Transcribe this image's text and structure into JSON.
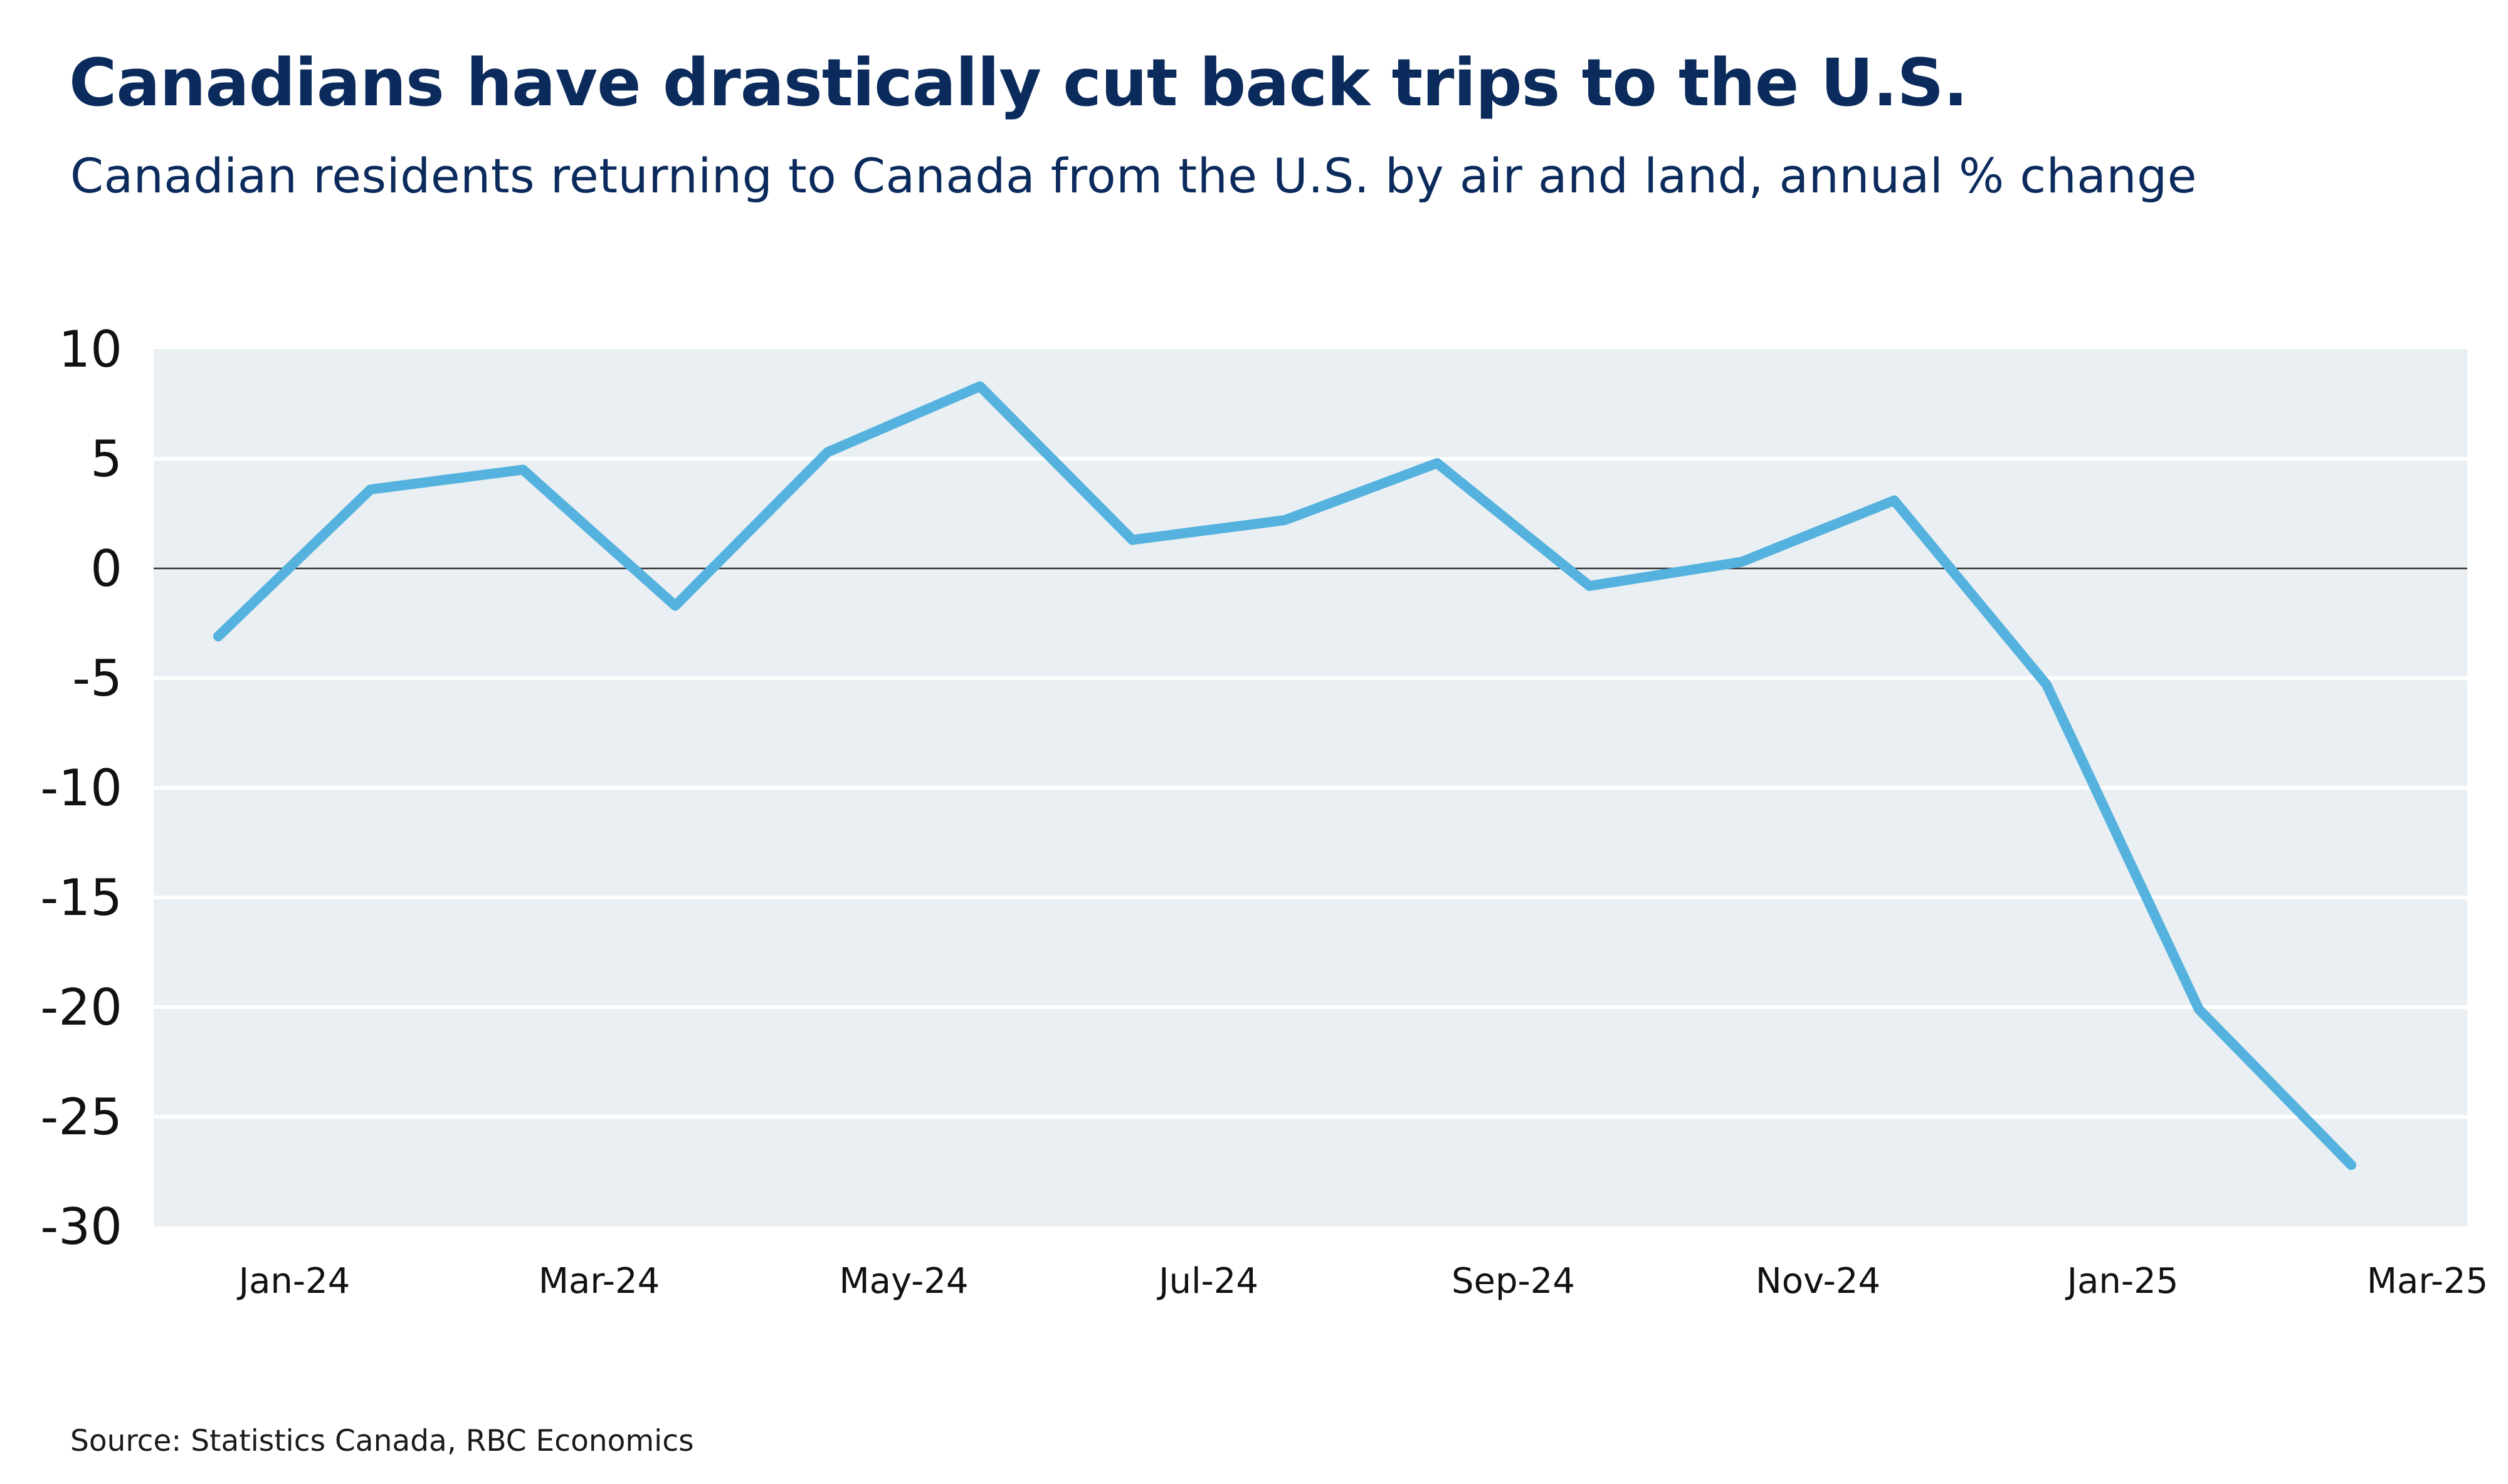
{
  "title": "Canadians have drastically cut back trips to the U.S.",
  "subtitle": "Canadian residents returning to Canada from the U.S. by air and land, annual % change",
  "source": "Source: Statistics Canada, RBC Economics",
  "colors": {
    "line": "#55b2de",
    "plot_background": "#e9eff2",
    "gridline": "#ffffff",
    "zero_line": "#333333",
    "title": "#0b2b5c",
    "axis_text": "#111111"
  },
  "chart_data": {
    "type": "line",
    "title": "Canadians have drastically cut back trips to the U.S.",
    "subtitle": "Canadian residents returning to Canada from the U.S. by air and land, annual % change",
    "xlabel": "",
    "ylabel": "",
    "ylim": [
      -30,
      10
    ],
    "yticks": [
      10,
      5,
      0,
      -5,
      -10,
      -15,
      -20,
      -25,
      -30
    ],
    "ytick_labels": [
      "10",
      "5",
      "0",
      "-5",
      "-10",
      "-15",
      "-20",
      "-25",
      "-30"
    ],
    "x": [
      "Jan-24",
      "Feb-24",
      "Mar-24",
      "Apr-24",
      "May-24",
      "Jun-24",
      "Jul-24",
      "Aug-24",
      "Sep-24",
      "Oct-24",
      "Nov-24",
      "Dec-24",
      "Jan-25",
      "Feb-25",
      "Mar-25"
    ],
    "xtick_labels": [
      "Jan-24",
      "Mar-24",
      "May-24",
      "Jul-24",
      "Sep-24",
      "Nov-24",
      "Jan-25",
      "Mar-25"
    ],
    "grid": true,
    "legend": "none",
    "series": [
      {
        "name": "Canadian residents returning from the U.S. (annual % change)",
        "values": [
          -3.1,
          3.6,
          4.5,
          -1.7,
          5.3,
          8.3,
          1.3,
          2.2,
          4.8,
          -0.8,
          0.3,
          3.1,
          -5.3,
          -20.1,
          -27.2
        ]
      }
    ]
  }
}
